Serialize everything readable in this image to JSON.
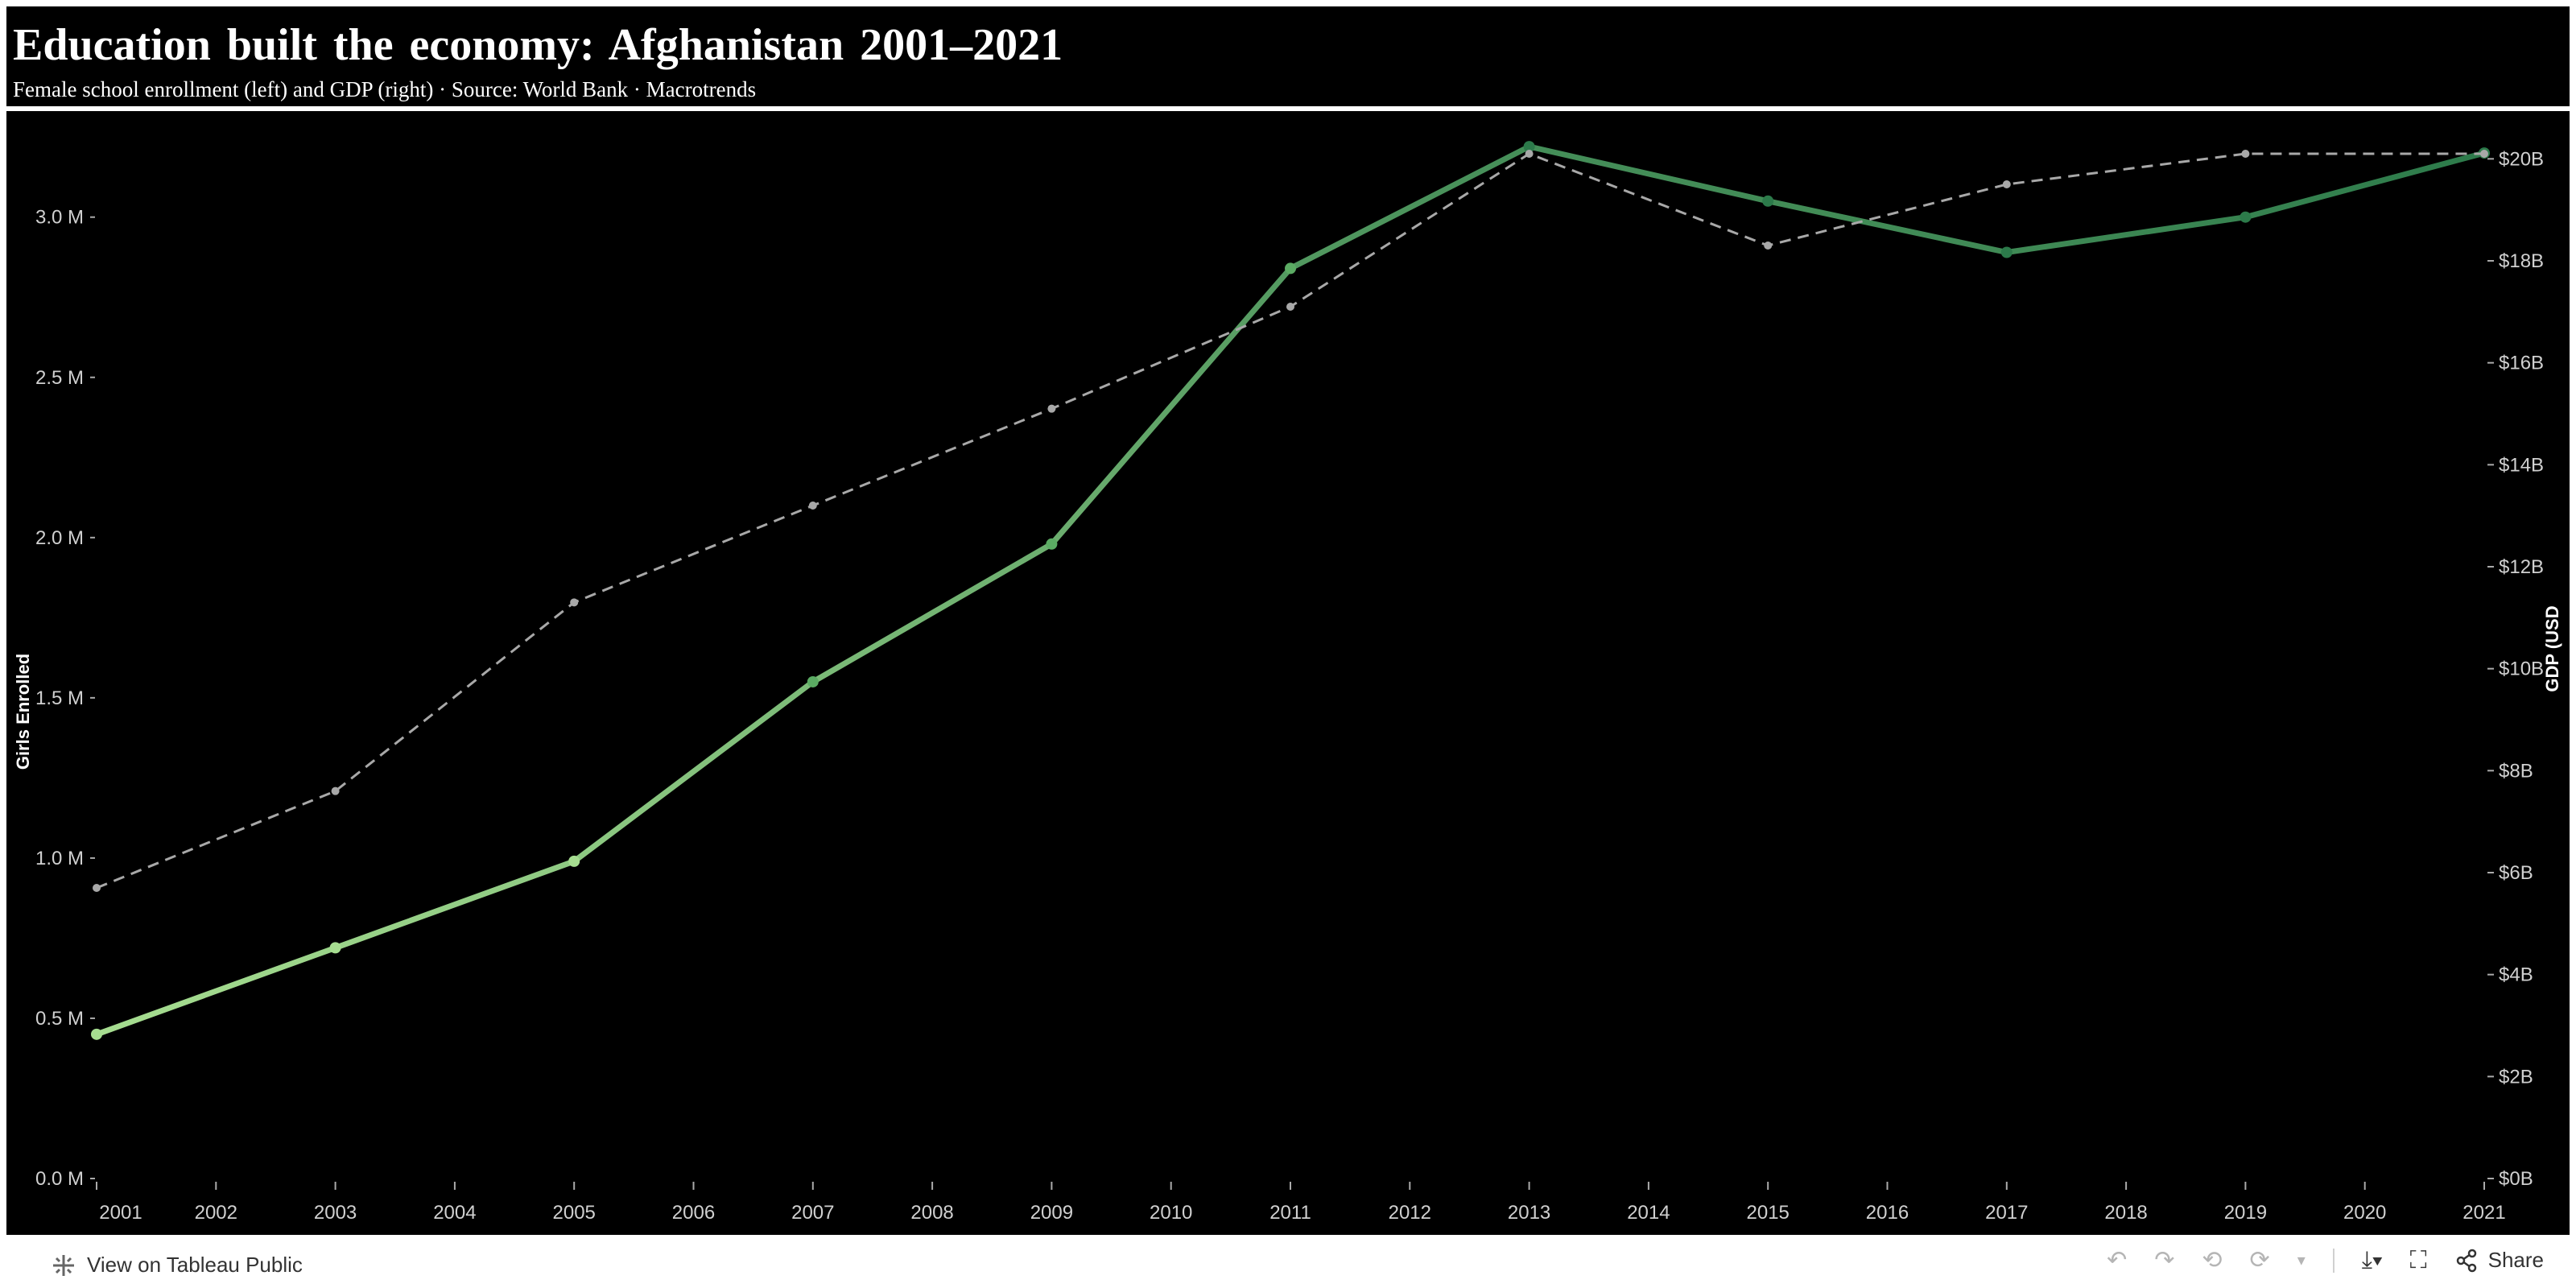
{
  "header": {
    "title": "Education built the economy: Afghanistan 2001–2021",
    "subtitle": "Female school enrollment (left) and GDP (right) · Source: World Bank · Macrotrends"
  },
  "chart_data": {
    "type": "line",
    "xlabel": "",
    "x_ticks": [
      "2001",
      "2002",
      "2003",
      "2004",
      "2005",
      "2006",
      "2007",
      "2008",
      "2009",
      "2010",
      "2011",
      "2012",
      "2013",
      "2014",
      "2015",
      "2016",
      "2017",
      "2018",
      "2019",
      "2020",
      "2021"
    ],
    "y_left": {
      "label": "Girls Enrolled",
      "ticks": [
        "0.0 M",
        "0.5 M",
        "1.0 M",
        "1.5 M",
        "2.0 M",
        "2.5 M",
        "3.0 M"
      ],
      "ylim": [
        0,
        3.15
      ]
    },
    "y_right": {
      "label": "GDP (USD",
      "ticks": [
        "$0B",
        "$2B",
        "$4B",
        "$6B",
        "$8B",
        "$10B",
        "$12B",
        "$14B",
        "$16B",
        "$18B",
        "$20B"
      ],
      "ylim": [
        0,
        19.8
      ]
    },
    "series": [
      {
        "name": "Girls Enrolled",
        "axis": "left",
        "style": "solid-gradient",
        "color_start": "#a6dd90",
        "color_end": "#2c7a4a",
        "points": [
          [
            2001,
            0.45
          ],
          [
            2003,
            0.72
          ],
          [
            2005,
            0.99
          ],
          [
            2007,
            1.55
          ],
          [
            2009,
            1.98
          ],
          [
            2011,
            2.84
          ],
          [
            2013,
            3.22
          ],
          [
            2015,
            3.05
          ],
          [
            2017,
            2.89
          ],
          [
            2019,
            3.0
          ],
          [
            2021,
            3.2
          ]
        ]
      },
      {
        "name": "GDP",
        "axis": "right",
        "style": "dashed",
        "color": "#a8a8a8",
        "points": [
          [
            2001,
            5.7
          ],
          [
            2003,
            7.6
          ],
          [
            2005,
            11.3
          ],
          [
            2007,
            13.2
          ],
          [
            2009,
            15.1
          ],
          [
            2011,
            17.1
          ],
          [
            2013,
            20.1
          ],
          [
            2015,
            18.3
          ],
          [
            2017,
            19.5
          ],
          [
            2019,
            20.1
          ],
          [
            2021,
            20.1
          ]
        ]
      }
    ],
    "grid": false,
    "legend": "none"
  },
  "footer": {
    "link_label": "View on Tableau Public",
    "share_label": "Share"
  }
}
